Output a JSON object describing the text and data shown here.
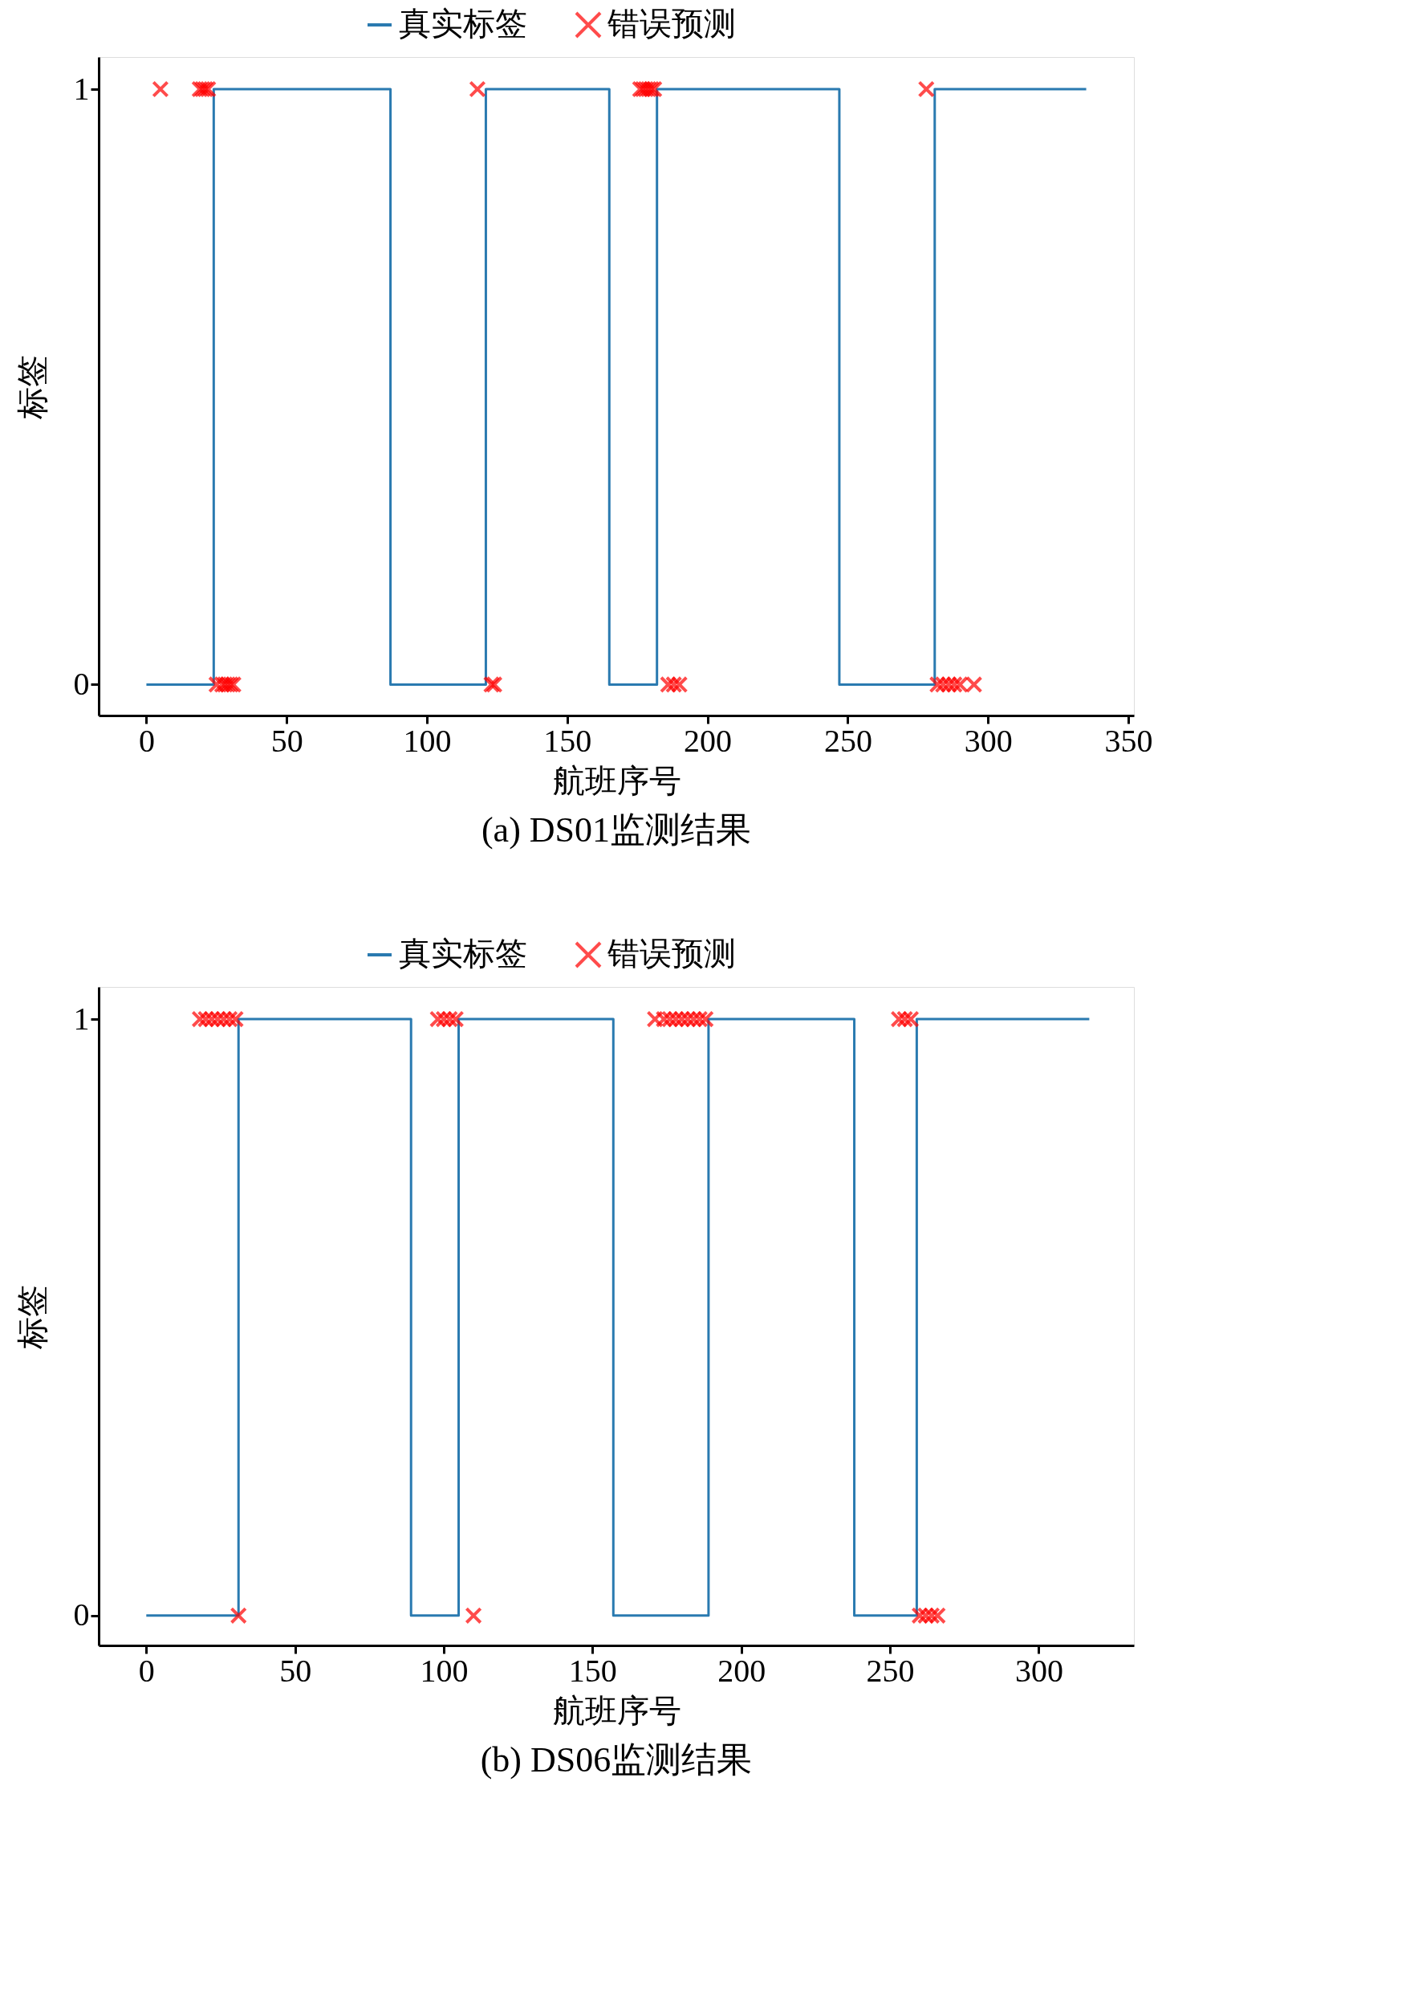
{
  "chart_data": [
    {
      "type": "step",
      "title": "(a) DS01监测结果",
      "xlabel": "航班序号",
      "ylabel": "标签",
      "xlim": [
        -17,
        352
      ],
      "xticks": [
        0,
        50,
        100,
        150,
        200,
        250,
        300,
        350
      ],
      "ylim": [
        -0.052,
        1.054
      ],
      "yticks": [
        0,
        1
      ],
      "grid": false,
      "legend": "top",
      "series": [
        {
          "name": "真实标签",
          "color": "#2a7ab0",
          "x": [
            0,
            24,
            87,
            121,
            165,
            182,
            247,
            281,
            335
          ],
          "values": [
            0,
            1,
            0,
            1,
            0,
            1,
            0,
            1,
            1
          ]
        },
        {
          "name": "错误预测",
          "type": "scatter",
          "marker": "cross",
          "color": "#ff0000",
          "x": [
            5,
            19,
            20,
            21,
            22,
            118,
            176,
            177,
            178,
            179,
            180,
            181,
            278,
            25,
            27,
            28,
            29,
            30,
            31,
            123,
            124,
            186,
            188,
            190,
            282,
            284,
            286,
            288,
            290,
            295
          ],
          "values": [
            1,
            1,
            1,
            1,
            1,
            1,
            1,
            1,
            1,
            1,
            1,
            1,
            1,
            0,
            0,
            0,
            0,
            0,
            0,
            0,
            0,
            0,
            0,
            0,
            0,
            0,
            0,
            0,
            0,
            0
          ]
        }
      ]
    },
    {
      "type": "step",
      "title": "(b) DS06监测结果",
      "xlabel": "航班序号",
      "ylabel": "标签",
      "xlim": [
        -16,
        332
      ],
      "xticks": [
        0,
        50,
        100,
        150,
        200,
        250,
        300
      ],
      "ylim": [
        -0.05,
        1.054
      ],
      "yticks": [
        0,
        1
      ],
      "grid": false,
      "legend": "top",
      "series": [
        {
          "name": "真实标签",
          "color": "#2a7ab0",
          "x": [
            0,
            31,
            89,
            105,
            157,
            189,
            238,
            259,
            317
          ],
          "values": [
            0,
            1,
            0,
            1,
            0,
            1,
            0,
            1,
            1
          ]
        },
        {
          "name": "错误预测",
          "type": "scatter",
          "marker": "cross",
          "color": "#ff0000",
          "x": [
            18,
            20,
            22,
            24,
            26,
            28,
            30,
            98,
            100,
            102,
            104,
            171,
            174,
            176,
            178,
            180,
            182,
            184,
            186,
            188,
            253,
            255,
            257,
            31,
            110,
            260,
            262,
            264,
            266
          ],
          "values": [
            1,
            1,
            1,
            1,
            1,
            1,
            1,
            1,
            1,
            1,
            1,
            1,
            1,
            1,
            1,
            1,
            1,
            1,
            1,
            1,
            1,
            1,
            1,
            0,
            0,
            0,
            0,
            0,
            0
          ]
        }
      ]
    }
  ]
}
